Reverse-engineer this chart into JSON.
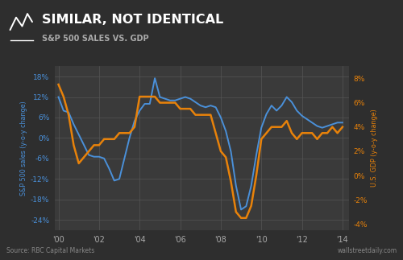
{
  "title_main": "SIMILAR, NOT IDENTICAL",
  "title_sub": "S&P 500 SALES VS. GDP",
  "source_left": "Source: RBC Capital Markets",
  "source_right": "wallstreetdaily.com",
  "bg_outer": "#2e2e2e",
  "bg_header": "#111111",
  "bg_plot": "#3a3a3a",
  "grid_color": "#555555",
  "text_color_white": "#ffffff",
  "text_color_blue": "#4a90d9",
  "text_color_orange": "#e8820a",
  "line_color_blue": "#4a90d9",
  "line_color_orange": "#e8820a",
  "ylabel_left": "S&P 500 sales (y-o-y change)",
  "ylabel_right": "U.S. GDP (y-o-y change)",
  "ylim_left": [
    -27,
    21
  ],
  "ylim_right": [
    -4.5,
    9
  ],
  "yticks_left": [
    -24,
    -18,
    -12,
    -6,
    0,
    6,
    12,
    18
  ],
  "yticks_right": [
    -4,
    -2,
    0,
    2,
    4,
    6,
    8
  ],
  "xtick_labels": [
    "'00",
    "'02",
    "'04",
    "'06",
    "'08",
    "'10",
    "'12",
    "'14"
  ],
  "xtick_positions": [
    2000,
    2002,
    2004,
    2006,
    2008,
    2010,
    2012,
    2014
  ],
  "sp500": {
    "x": [
      2000.0,
      2000.25,
      2000.5,
      2000.75,
      2001.0,
      2001.25,
      2001.5,
      2001.75,
      2002.0,
      2002.25,
      2002.5,
      2002.75,
      2003.0,
      2003.25,
      2003.5,
      2003.75,
      2004.0,
      2004.25,
      2004.5,
      2004.75,
      2005.0,
      2005.25,
      2005.5,
      2005.75,
      2006.0,
      2006.25,
      2006.5,
      2006.75,
      2007.0,
      2007.25,
      2007.5,
      2007.75,
      2008.0,
      2008.25,
      2008.5,
      2008.75,
      2009.0,
      2009.25,
      2009.5,
      2009.75,
      2010.0,
      2010.25,
      2010.5,
      2010.75,
      2011.0,
      2011.25,
      2011.5,
      2011.75,
      2012.0,
      2012.25,
      2012.5,
      2012.75,
      2013.0,
      2013.25,
      2013.5,
      2013.75,
      2014.0
    ],
    "y": [
      12.0,
      8.0,
      7.5,
      4.0,
      1.0,
      -2.0,
      -5.0,
      -5.5,
      -5.5,
      -6.0,
      -9.0,
      -12.5,
      -12.0,
      -6.0,
      0.0,
      5.0,
      8.0,
      10.0,
      10.0,
      17.5,
      12.0,
      11.5,
      11.0,
      11.0,
      11.5,
      12.0,
      11.5,
      10.5,
      9.5,
      9.0,
      9.5,
      9.0,
      6.0,
      2.0,
      -4.0,
      -14.0,
      -21.0,
      -20.0,
      -14.0,
      -5.0,
      3.0,
      7.0,
      9.5,
      8.0,
      9.5,
      12.0,
      10.5,
      8.0,
      6.5,
      5.5,
      4.5,
      3.5,
      3.0,
      3.5,
      4.0,
      4.5,
      4.5
    ]
  },
  "gdp": {
    "x": [
      2000.0,
      2000.25,
      2000.5,
      2000.75,
      2001.0,
      2001.25,
      2001.5,
      2001.75,
      2002.0,
      2002.25,
      2002.5,
      2002.75,
      2003.0,
      2003.25,
      2003.5,
      2003.75,
      2004.0,
      2004.25,
      2004.5,
      2004.75,
      2005.0,
      2005.25,
      2005.5,
      2005.75,
      2006.0,
      2006.25,
      2006.5,
      2006.75,
      2007.0,
      2007.25,
      2007.5,
      2007.75,
      2008.0,
      2008.25,
      2008.5,
      2008.75,
      2009.0,
      2009.25,
      2009.5,
      2009.75,
      2010.0,
      2010.25,
      2010.5,
      2010.75,
      2011.0,
      2011.25,
      2011.5,
      2011.75,
      2012.0,
      2012.25,
      2012.5,
      2012.75,
      2013.0,
      2013.25,
      2013.5,
      2013.75,
      2014.0
    ],
    "y": [
      7.5,
      6.5,
      5.0,
      2.5,
      1.0,
      1.5,
      2.0,
      2.5,
      2.5,
      3.0,
      3.0,
      3.0,
      3.5,
      3.5,
      3.5,
      4.0,
      6.5,
      6.5,
      6.5,
      6.5,
      6.0,
      6.0,
      6.0,
      6.0,
      5.5,
      5.5,
      5.5,
      5.0,
      5.0,
      5.0,
      5.0,
      3.5,
      2.0,
      1.5,
      -0.5,
      -3.0,
      -3.5,
      -3.5,
      -2.5,
      0.0,
      3.0,
      3.5,
      4.0,
      4.0,
      4.0,
      4.5,
      3.5,
      3.0,
      3.5,
      3.5,
      3.5,
      3.0,
      3.5,
      3.5,
      4.0,
      3.5,
      4.0
    ]
  }
}
